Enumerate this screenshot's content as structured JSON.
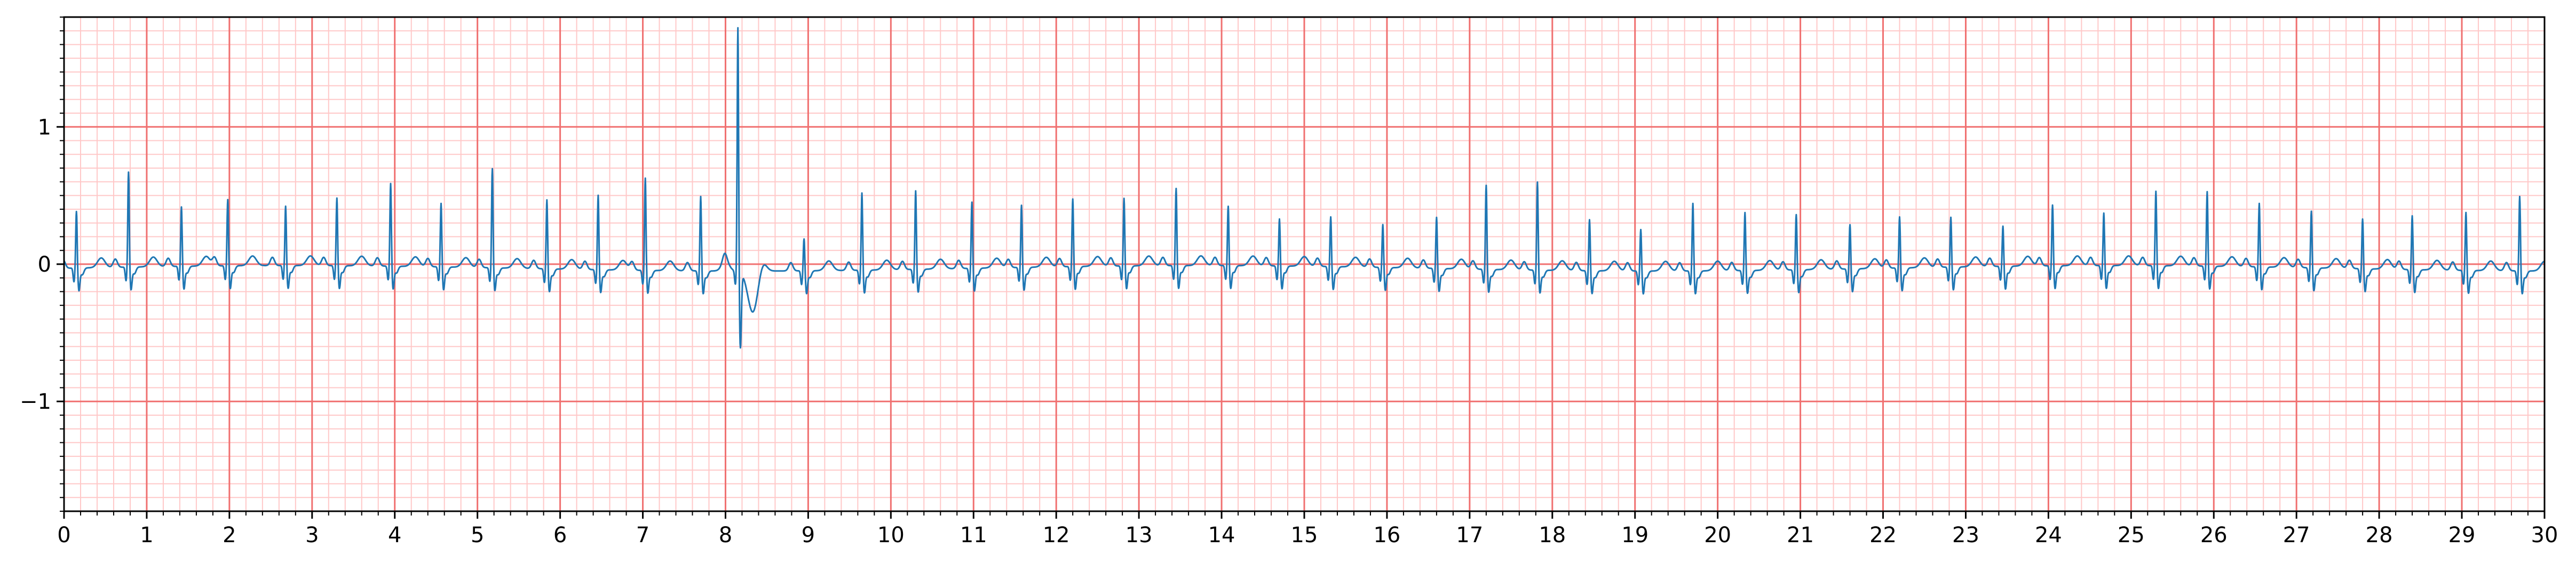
{
  "chart_data": {
    "type": "line",
    "title": "",
    "xlabel": "",
    "ylabel": "",
    "xlim": [
      0,
      30
    ],
    "ylim": [
      -1.8,
      1.8
    ],
    "x_ticks": [
      0,
      1,
      2,
      3,
      4,
      5,
      6,
      7,
      8,
      9,
      10,
      11,
      12,
      13,
      14,
      15,
      16,
      17,
      18,
      19,
      20,
      21,
      22,
      23,
      24,
      25,
      26,
      27,
      28,
      29,
      30
    ],
    "x_tick_labels": [
      "0",
      "1",
      "2",
      "3",
      "4",
      "5",
      "6",
      "7",
      "8",
      "9",
      "10",
      "11",
      "12",
      "13",
      "14",
      "15",
      "16",
      "17",
      "18",
      "19",
      "20",
      "21",
      "22",
      "23",
      "24",
      "25",
      "26",
      "27",
      "28",
      "29",
      "30"
    ],
    "y_ticks": [
      -1,
      0,
      1
    ],
    "y_tick_labels": [
      "−1",
      "0",
      "1"
    ],
    "grid": "on (major every 1 s / 1 unit, minor every 0.2 s / 0.1 unit)",
    "colors": {
      "trace": "#1f77b4",
      "major_grid": "#f07070",
      "minor_grid": "#ffc8c8",
      "axes": "#000000"
    },
    "series": [
      {
        "beats": {
          "times": [
            0.15,
            0.78,
            1.42,
            1.98,
            2.68,
            3.3,
            3.95,
            4.56,
            5.18,
            5.84,
            6.46,
            7.03,
            7.7,
            8.15,
            8.95,
            9.65,
            10.3,
            10.98,
            11.58,
            12.2,
            12.82,
            13.45,
            14.08,
            14.7,
            15.32,
            15.95,
            16.6,
            17.2,
            17.82,
            18.45,
            19.07,
            19.7,
            20.33,
            20.95,
            21.6,
            22.2,
            22.82,
            23.45,
            24.05,
            24.67,
            25.3,
            25.92,
            26.55,
            27.18,
            27.8,
            28.4,
            29.05,
            29.7
          ],
          "r_peak_mV": [
            0.42,
            0.7,
            0.44,
            0.49,
            0.44,
            0.5,
            0.61,
            0.47,
            0.73,
            0.51,
            0.55,
            0.68,
            0.55,
            1.8,
            0.24,
            0.57,
            0.58,
            0.49,
            0.46,
            0.5,
            0.5,
            0.57,
            0.44,
            0.35,
            0.37,
            0.32,
            0.38,
            0.62,
            0.65,
            0.38,
            0.31,
            0.5,
            0.43,
            0.41,
            0.33,
            0.38,
            0.37,
            0.3,
            0.45,
            0.39,
            0.55,
            0.55,
            0.47,
            0.42,
            0.37,
            0.4,
            0.43,
            0.55
          ]
        }
      }
    ]
  }
}
